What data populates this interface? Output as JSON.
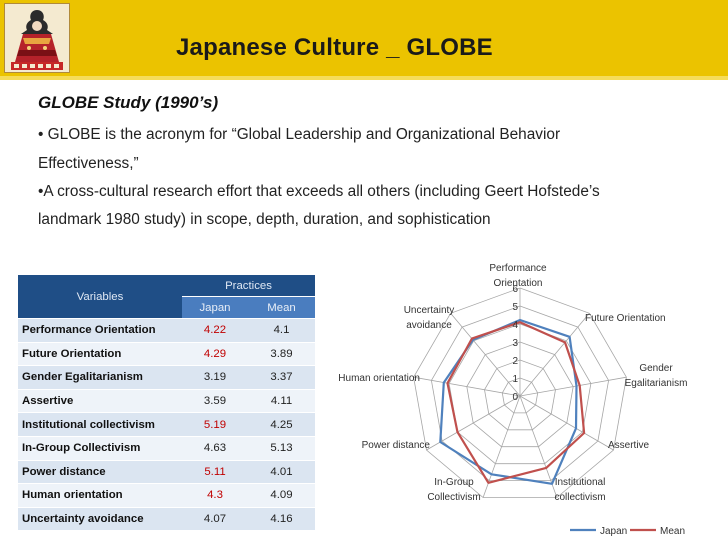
{
  "header": {
    "title": "Japanese Culture _ GLOBE"
  },
  "content": {
    "subtitle": "GLOBE Study (1990’s)",
    "bullets": [
      "• GLOBE is the acronym for “Global Leadership and Organizational Behavior",
      "Effectiveness,”",
      "•A cross-cultural research effort that exceeds all others (including Geert Hofstede’s",
      "landmark 1980 study) in scope, depth, duration, and sophistication"
    ]
  },
  "table": {
    "variables_header": "Variables",
    "practices_header": "Practices",
    "col_japan": "Japan",
    "col_mean": "Mean",
    "rows": [
      {
        "name": "Performance Orientation",
        "japan": "4.22",
        "mean": "4.1",
        "japan_highlight": true
      },
      {
        "name": "Future Orientation",
        "japan": "4.29",
        "mean": "3.89",
        "japan_highlight": true
      },
      {
        "name": "Gender Egalitarianism",
        "japan": "3.19",
        "mean": "3.37",
        "japan_highlight": false
      },
      {
        "name": "Assertive",
        "japan": "3.59",
        "mean": "4.11",
        "japan_highlight": false
      },
      {
        "name": "Institutional collectivism",
        "japan": "5.19",
        "mean": "4.25",
        "japan_highlight": true
      },
      {
        "name": "In-Group Collectivism",
        "japan": "4.63",
        "mean": "5.13",
        "japan_highlight": false
      },
      {
        "name": "Power distance",
        "japan": "5.11",
        "mean": "4.01",
        "japan_highlight": true
      },
      {
        "name": "Human orientation",
        "japan": "4.3",
        "mean": "4.09",
        "japan_highlight": true
      },
      {
        "name": "Uncertainty avoidance",
        "japan": "4.07",
        "mean": "4.16",
        "japan_highlight": false
      }
    ],
    "highlight_color": "#c00000"
  },
  "chart_data": {
    "type": "radar",
    "axes": [
      [
        "Performance",
        "Orientation"
      ],
      [
        "Future Orientation"
      ],
      [
        "Gender",
        "Egalitarianism"
      ],
      [
        "Assertive"
      ],
      [
        "Institutional",
        "collectivism"
      ],
      [
        "In-Group",
        "Collectivism"
      ],
      [
        "Power distance"
      ],
      [
        "Human orientation"
      ],
      [
        "Uncertainty",
        "avoidance"
      ]
    ],
    "ticks": [
      "0",
      "1",
      "2",
      "3",
      "4",
      "5",
      "6"
    ],
    "range": [
      0,
      6
    ],
    "series": [
      {
        "name": "Japan",
        "color": "#4f81bd",
        "values": [
          4.22,
          4.29,
          3.19,
          3.59,
          5.19,
          4.63,
          5.11,
          4.3,
          4.07
        ]
      },
      {
        "name": "Mean",
        "color": "#c0504d",
        "values": [
          4.1,
          3.89,
          3.37,
          4.11,
          4.25,
          5.13,
          4.01,
          4.09,
          4.16
        ]
      }
    ],
    "legend_position": "bottom-right",
    "grid": true
  }
}
